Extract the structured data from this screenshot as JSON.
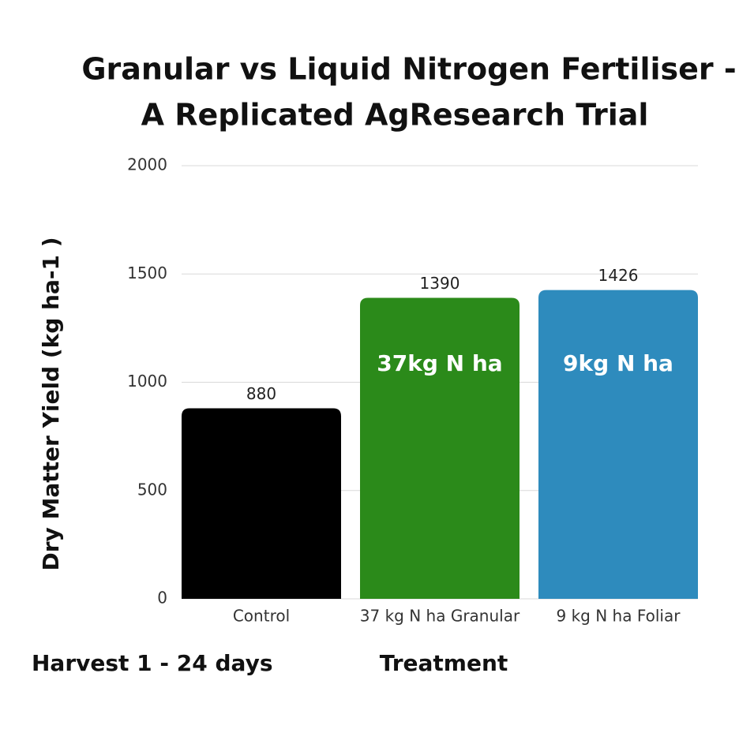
{
  "chart_data": {
    "type": "bar",
    "title_lines": [
      "Granular vs Liquid Nitrogen Fertiliser -",
      "A Replicated AgResearch Trial"
    ],
    "ylabel": "Dry Matter Yield (kg ha-1 )",
    "xlabel": "Treatment",
    "annotation": "Harvest 1 - 24 days",
    "categories": [
      "Control",
      "37 kg N ha Granular",
      "9 kg N ha Foliar"
    ],
    "values": [
      880,
      1390,
      1426
    ],
    "colors": [
      "#000000",
      "#2b8a1a",
      "#2e8bbd"
    ],
    "inner_labels": [
      null,
      "37kg N ha",
      "9kg N ha"
    ],
    "ylim": [
      0,
      2000
    ],
    "yticks": [
      0,
      500,
      1000,
      1500,
      2000
    ],
    "grid": true
  }
}
